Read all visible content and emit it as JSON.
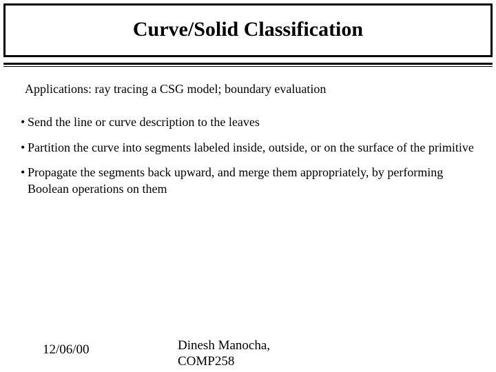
{
  "title": "Curve/Solid Classification",
  "intro": "Applications: ray tracing a CSG model; boundary evaluation",
  "bullets": [
    "Send the line or curve description to the leaves",
    "Partition the curve into segments labeled inside, outside,  or on the surface of the primitive",
    "Propagate the segments back upward, and merge them appropriately, by performing Boolean operations on them"
  ],
  "footer": {
    "date": "12/06/00",
    "author_line1": "Dinesh Manocha,",
    "author_line2": "COMP258"
  }
}
